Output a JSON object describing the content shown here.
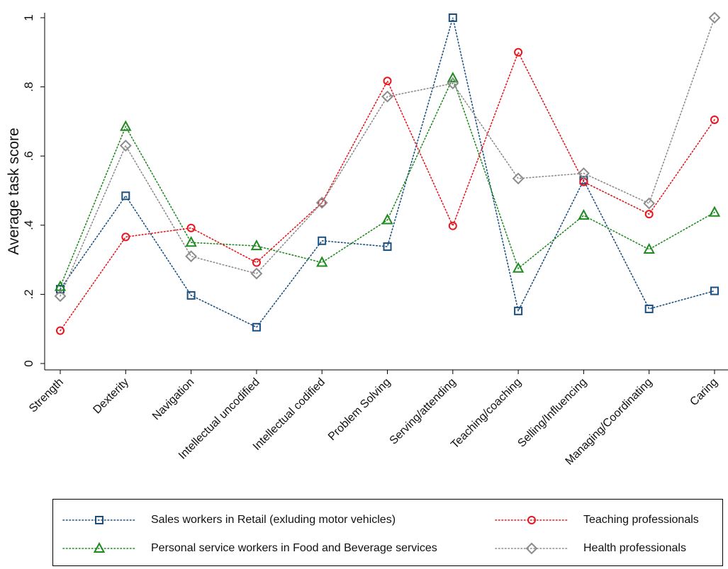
{
  "chart_data": {
    "type": "line",
    "ylabel": "Average task score",
    "xlabel": "",
    "ylim": [
      0,
      1
    ],
    "yticks": [
      {
        "value": 0,
        "label": "0"
      },
      {
        "value": 0.2,
        "label": ".2"
      },
      {
        "value": 0.4,
        "label": ".4"
      },
      {
        "value": 0.6,
        "label": ".6"
      },
      {
        "value": 0.8,
        "label": ".8"
      },
      {
        "value": 1,
        "label": "1"
      }
    ],
    "categories": [
      "Strength",
      "Dexterity",
      "Navigation",
      "Intellectual uncodified",
      "Intellectual codified",
      "Problem Solving",
      "Serving/attending",
      "Teaching/coaching",
      "Selling/Influencing",
      "Managing/Coordinating",
      "Caring"
    ],
    "grid": false,
    "legend_position": "bottom",
    "series": [
      {
        "name": "Sales workers in Retail (exluding motor vehicles)",
        "marker": "square",
        "color": "#1a4f80",
        "values": [
          0.215,
          0.485,
          0.197,
          0.105,
          0.355,
          0.338,
          1.0,
          0.152,
          0.53,
          0.158,
          0.21
        ]
      },
      {
        "name": "Personal service workers in Food and Beverage services",
        "marker": "triangle",
        "color": "#1f8a1f",
        "values": [
          0.222,
          0.685,
          0.35,
          0.34,
          0.292,
          0.415,
          0.825,
          0.275,
          0.428,
          0.33,
          0.437
        ]
      },
      {
        "name": "Teaching professionals",
        "marker": "circle",
        "color": "#e8151c",
        "values": [
          0.095,
          0.366,
          0.392,
          0.292,
          0.465,
          0.817,
          0.398,
          0.9,
          0.525,
          0.432,
          0.705
        ]
      },
      {
        "name": "Health professionals",
        "marker": "diamond",
        "color": "#8c8c8c",
        "values": [
          0.195,
          0.63,
          0.31,
          0.26,
          0.465,
          0.772,
          0.81,
          0.535,
          0.55,
          0.463,
          1.0
        ]
      }
    ]
  }
}
